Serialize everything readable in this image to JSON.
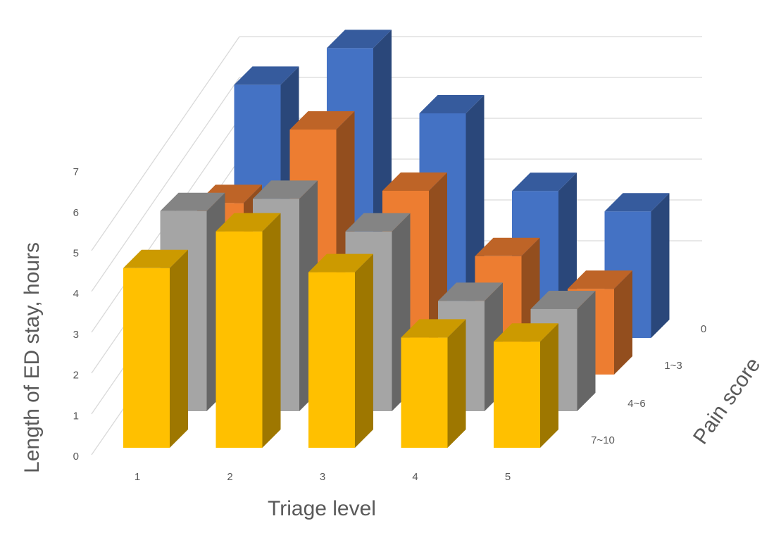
{
  "chart_data": {
    "type": "bar",
    "subtype": "3d-column",
    "title": "",
    "xlabel": "Triage level",
    "ylabel": "Length of ED stay, hours",
    "zlabel": "Pain score",
    "categories": [
      "1",
      "2",
      "3",
      "4",
      "5"
    ],
    "y_ticks": [
      "0",
      "1",
      "2",
      "3",
      "4",
      "5",
      "6",
      "7"
    ],
    "ylim": [
      0,
      7
    ],
    "grid": true,
    "legend": "none",
    "series": [
      {
        "name": "0",
        "color": "#4472c4",
        "values": [
          6.2,
          7.1,
          5.5,
          3.6,
          3.1
        ]
      },
      {
        "name": "1~3",
        "color": "#ed7d31",
        "values": [
          4.2,
          6.0,
          4.5,
          2.9,
          2.1
        ]
      },
      {
        "name": "4~6",
        "color": "#a5a5a5",
        "values": [
          4.9,
          5.2,
          4.4,
          2.7,
          2.5
        ]
      },
      {
        "name": "7~10",
        "color": "#ffc000",
        "values": [
          4.4,
          5.3,
          4.3,
          2.7,
          2.6
        ]
      }
    ]
  }
}
